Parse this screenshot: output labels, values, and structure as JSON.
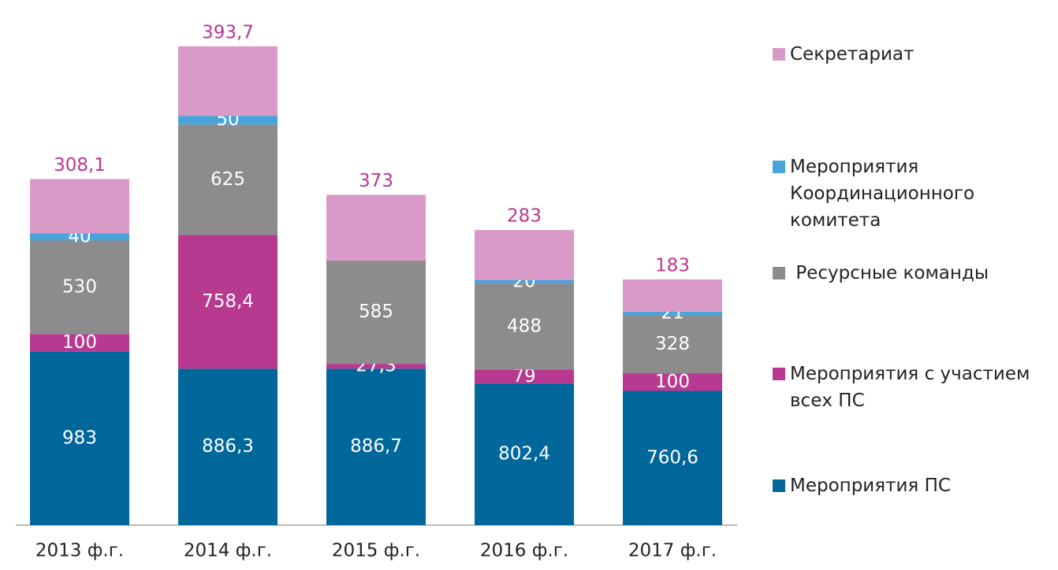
{
  "chart_data": {
    "type": "stacked_bar",
    "categories": [
      "2013 ф.г.",
      "2014 ф.г.",
      "2015 ф.г.",
      "2016 ф.г.",
      "2017 ф.г."
    ],
    "series": [
      {
        "name": "Мероприятия ПС",
        "color": "#00679a",
        "values": [
          983,
          886.3,
          886.7,
          802.4,
          760.6
        ],
        "value_labels": [
          "983",
          "886,3",
          "886,7",
          "802,4",
          "760,6"
        ]
      },
      {
        "name": "Мероприятия с участием всех ПС",
        "color": "#b83990",
        "values": [
          100,
          758.4,
          27.3,
          79,
          100
        ],
        "value_labels": [
          "100",
          "758,4",
          "27,3",
          "79",
          "100"
        ]
      },
      {
        "name": " Ресурсные команды",
        "color": "#8c8c8c",
        "values": [
          530,
          625,
          585,
          488,
          328
        ],
        "value_labels": [
          "530",
          "625",
          "585",
          "488",
          "328"
        ]
      },
      {
        "name": "Мероприятия Координационного комитета",
        "color": "#4aa3d9",
        "values": [
          40,
          50,
          null,
          20,
          21
        ],
        "value_labels": [
          "40",
          "50",
          null,
          "20",
          "21"
        ]
      },
      {
        "name": "Секретариат",
        "color": "#d99ac8",
        "values": [
          308.1,
          393.7,
          373,
          283,
          183
        ],
        "value_labels": [
          "308,1",
          "393,7",
          "373",
          "283",
          "183"
        ]
      }
    ],
    "ylim": [
      0,
      2900
    ]
  }
}
